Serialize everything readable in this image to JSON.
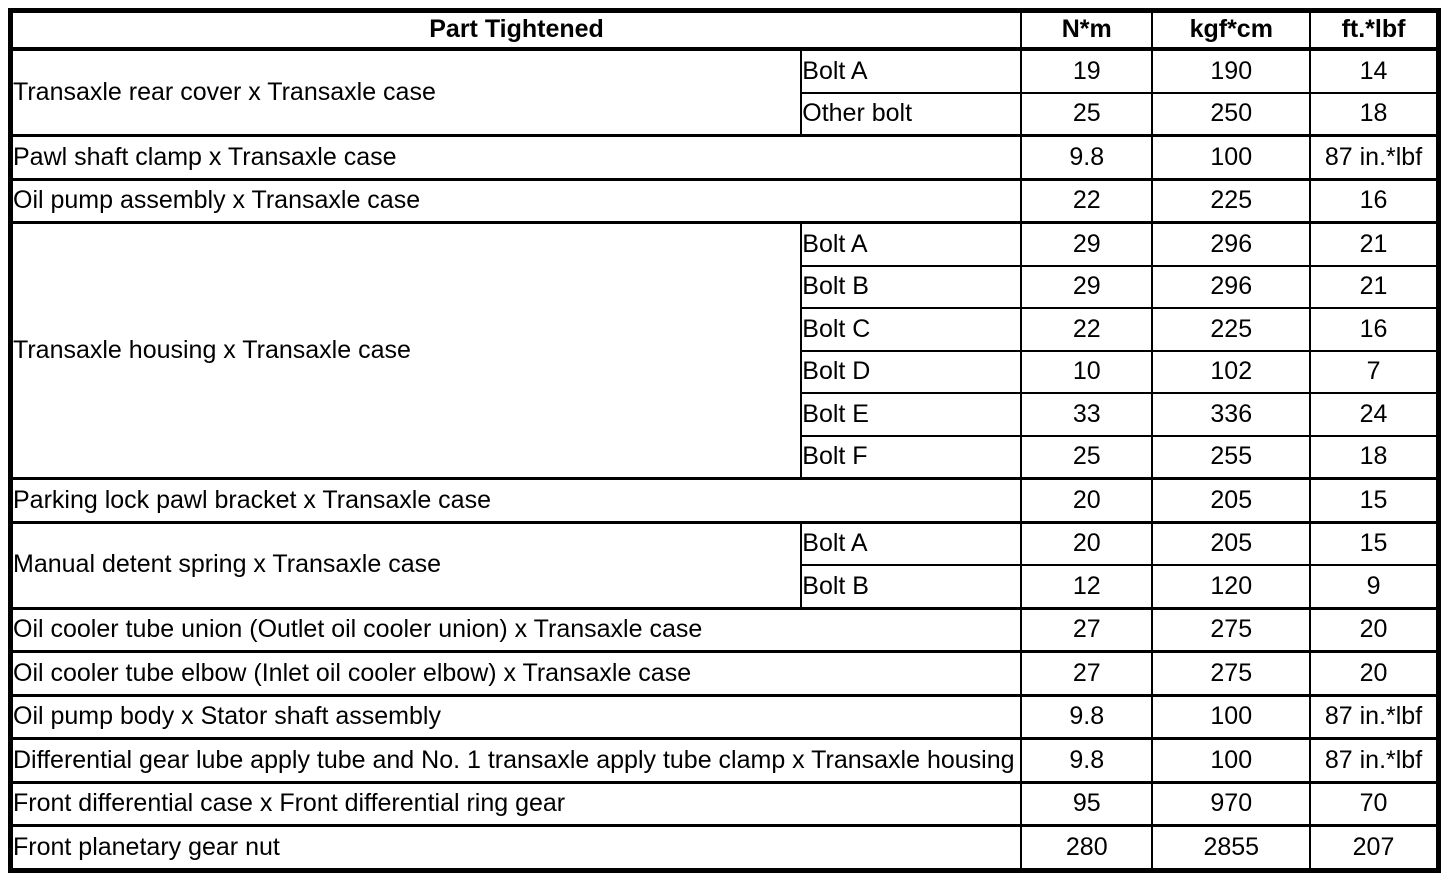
{
  "colors": {
    "background": "#ffffff",
    "text": "#000000",
    "border": "#000000"
  },
  "table": {
    "headers": {
      "part": "Part Tightened",
      "nm": "N*m",
      "kgfcm": "kgf*cm",
      "ftlbf": "ft.*lbf"
    },
    "rows": [
      {
        "part": "Transaxle rear cover x Transaxle case",
        "sub": [
          {
            "label": "Bolt A",
            "nm": "19",
            "kgfcm": "190",
            "ftlbf": "14"
          },
          {
            "label": "Other bolt",
            "nm": "25",
            "kgfcm": "250",
            "ftlbf": "18"
          }
        ]
      },
      {
        "part": "Pawl shaft clamp x Transaxle case",
        "nm": "9.8",
        "kgfcm": "100",
        "ftlbf": "87 in.*lbf"
      },
      {
        "part": "Oil pump assembly x Transaxle case",
        "nm": "22",
        "kgfcm": "225",
        "ftlbf": "16"
      },
      {
        "part": "Transaxle housing x Transaxle case",
        "sub": [
          {
            "label": "Bolt A",
            "nm": "29",
            "kgfcm": "296",
            "ftlbf": "21"
          },
          {
            "label": "Bolt B",
            "nm": "29",
            "kgfcm": "296",
            "ftlbf": "21"
          },
          {
            "label": "Bolt C",
            "nm": "22",
            "kgfcm": "225",
            "ftlbf": "16"
          },
          {
            "label": "Bolt D",
            "nm": "10",
            "kgfcm": "102",
            "ftlbf": "7"
          },
          {
            "label": "Bolt E",
            "nm": "33",
            "kgfcm": "336",
            "ftlbf": "24"
          },
          {
            "label": "Bolt F",
            "nm": "25",
            "kgfcm": "255",
            "ftlbf": "18"
          }
        ]
      },
      {
        "part": "Parking lock pawl bracket x Transaxle case",
        "nm": "20",
        "kgfcm": "205",
        "ftlbf": "15"
      },
      {
        "part": "Manual detent spring x Transaxle case",
        "sub": [
          {
            "label": "Bolt A",
            "nm": "20",
            "kgfcm": "205",
            "ftlbf": "15"
          },
          {
            "label": "Bolt B",
            "nm": "12",
            "kgfcm": "120",
            "ftlbf": "9"
          }
        ]
      },
      {
        "part": "Oil cooler tube union (Outlet oil cooler union) x Transaxle case",
        "nm": "27",
        "kgfcm": "275",
        "ftlbf": "20"
      },
      {
        "part": "Oil cooler tube elbow (Inlet oil cooler elbow) x Transaxle case",
        "nm": "27",
        "kgfcm": "275",
        "ftlbf": "20"
      },
      {
        "part": "Oil pump body x Stator shaft assembly",
        "nm": "9.8",
        "kgfcm": "100",
        "ftlbf": "87 in.*lbf"
      },
      {
        "part": "Differential gear lube apply tube and No. 1 transaxle apply tube clamp x Transaxle housing",
        "nm": "9.8",
        "kgfcm": "100",
        "ftlbf": "87 in.*lbf"
      },
      {
        "part": "Front differential case x Front differential ring gear",
        "nm": "95",
        "kgfcm": "970",
        "ftlbf": "70"
      },
      {
        "part": "Front planetary gear nut",
        "nm": "280",
        "kgfcm": "2855",
        "ftlbf": "207"
      }
    ]
  }
}
